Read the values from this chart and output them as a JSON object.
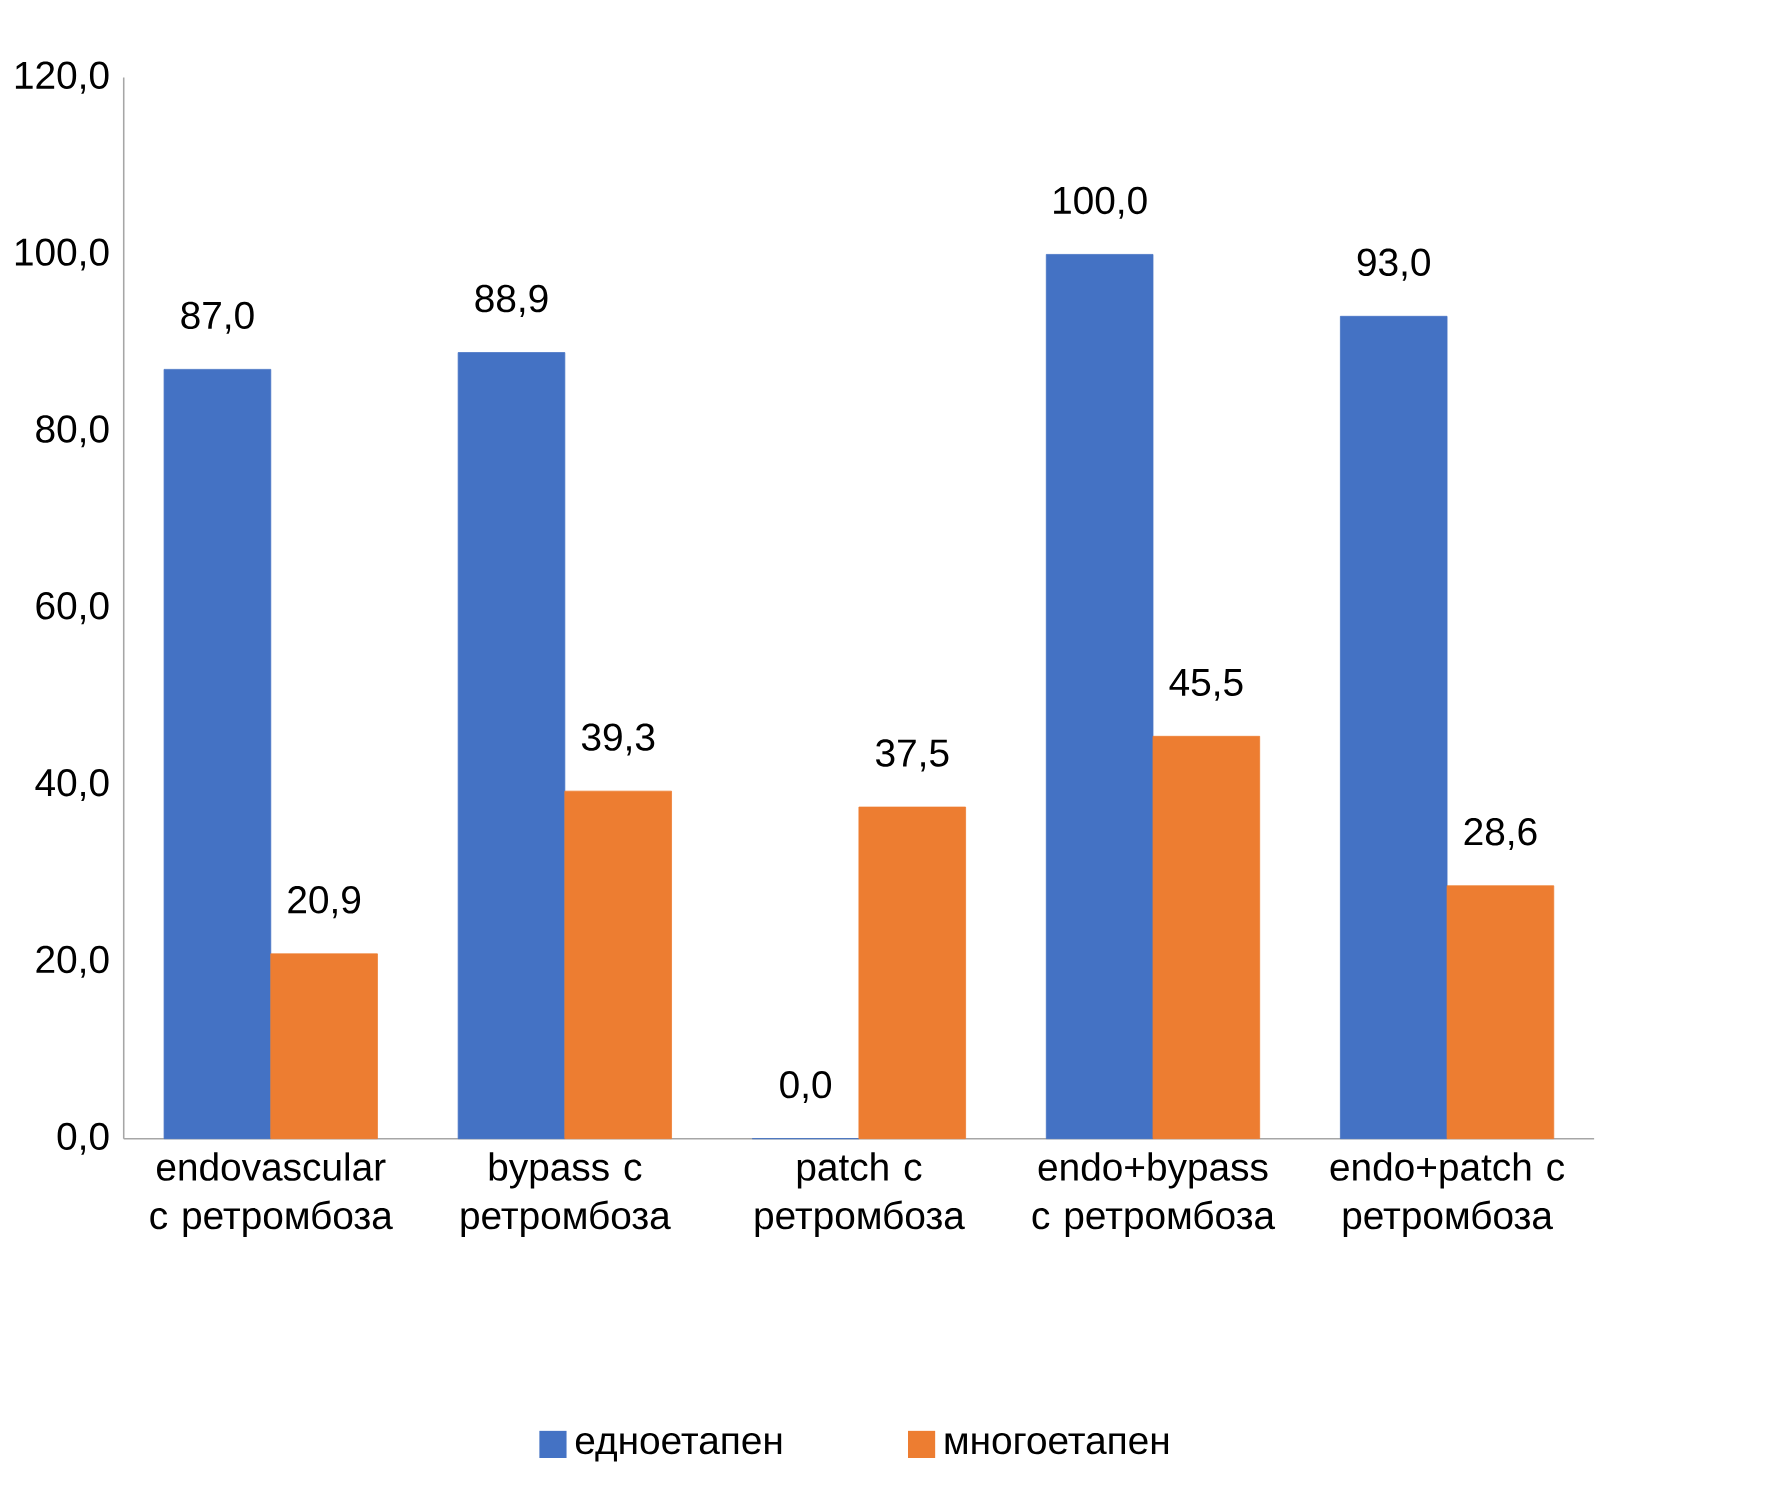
{
  "chart_data": {
    "type": "bar",
    "categories": [
      "endovascular с ретромбоза",
      "bypass с ретромбоза",
      "patch с ретромбоза",
      "endo+bypass с ретромбоза",
      "endo+patch с ретромбоза"
    ],
    "series": [
      {
        "name": "едноетапен",
        "color": "#4472c4",
        "values": [
          87.0,
          88.9,
          0.0,
          100.0,
          93.0
        ],
        "value_labels": [
          "87,0",
          "88,9",
          "0,0",
          "100,0",
          "93,0"
        ]
      },
      {
        "name": "многоетапен",
        "color": "#ed7d31",
        "values": [
          20.9,
          39.3,
          37.5,
          45.5,
          28.6
        ],
        "value_labels": [
          "20,9",
          "39,3",
          "37,5",
          "45,5",
          "28,6"
        ]
      }
    ],
    "ylim": [
      0,
      120
    ],
    "yticks": [
      {
        "value": 0,
        "label": "0,0"
      },
      {
        "value": 20,
        "label": "20,0"
      },
      {
        "value": 40,
        "label": "40,0"
      },
      {
        "value": 60,
        "label": "60,0"
      },
      {
        "value": 80,
        "label": "80,0"
      },
      {
        "value": 100,
        "label": "100,0"
      },
      {
        "value": 120,
        "label": "120,0"
      }
    ],
    "grid": false,
    "legend": "bottom"
  }
}
